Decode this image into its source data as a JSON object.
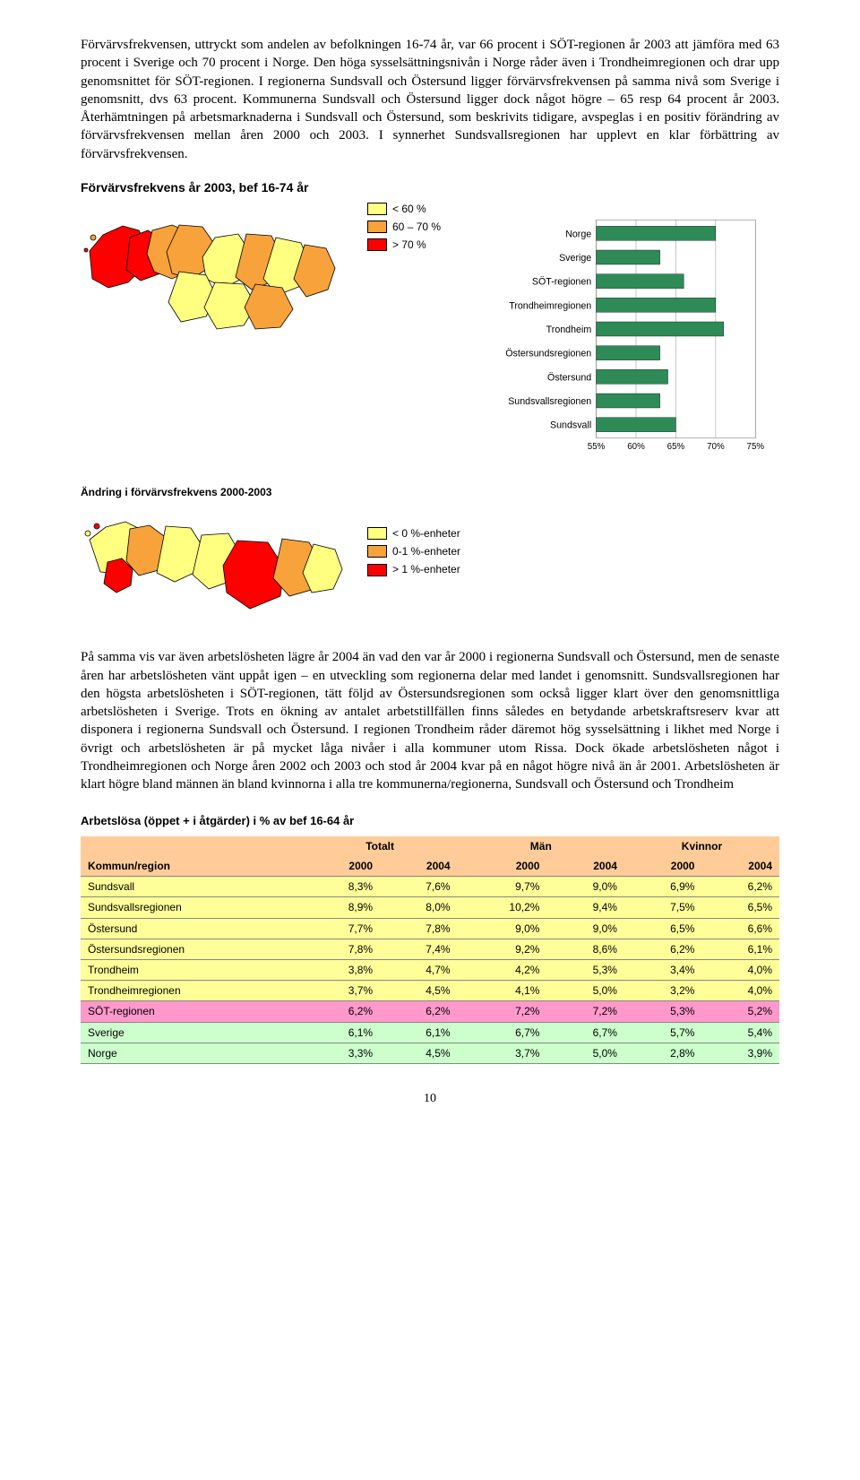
{
  "paragraphs": {
    "p1": "Förvärvsfrekvensen, uttryckt som andelen av befolkningen 16-74 år, var 66 procent i SÖT-regionen år 2003 att jämföra med 63 procent i Sverige och 70 procent i Norge. Den höga sysselsättningsnivån i Norge råder även i Trondheimregionen och drar upp genomsnittet för SÖT-regionen. I regionerna Sundsvall och Östersund ligger förvärvsfrekvensen på samma nivå som Sverige i genomsnitt, dvs 63 procent. Kommunerna Sundsvall och Östersund ligger dock något högre – 65 resp 64 procent år 2003. Återhämtningen på arbetsmarknaderna i Sundsvall och Östersund, som beskrivits tidigare, avspeglas i en positiv förändring av förvärvsfrekvensen mellan åren 2000 och 2003. I synnerhet Sundsvallsregionen har upplevt en klar förbättring av förvärvsfrekvensen.",
    "p2": "På samma vis var även arbetslösheten lägre år 2004 än vad den var år 2000 i regionerna Sundsvall och Östersund, men de senaste åren har arbetslösheten vänt uppåt igen – en utveckling som regionerna delar med landet i genomsnitt. Sundsvallsregionen har den högsta arbetslösheten i SÖT-regionen, tätt följd av Östersundsregionen som också ligger klart över den genomsnittliga arbetslösheten i Sverige. Trots en ökning av antalet arbetstillfällen finns således en betydande arbetskraftsreserv kvar att disponera i regionerna Sundsvall och Östersund. I regionen Trondheim råder däremot hög sysselsättning i likhet med Norge i övrigt och arbetslösheten är på mycket låga nivåer i alla kommuner utom Rissa. Dock ökade arbetslösheten något i Trondheimregionen och Norge åren 2002 och 2003 och stod år 2004 kvar på en något högre nivå än år 2001. Arbetslösheten är klart högre bland männen än bland kvinnorna i alla tre kommunerna/regionerna, Sundsvall och Östersund och Trondheim"
  },
  "chart": {
    "title": "Förvärvsfrekvens år 2003, bef 16-74 år",
    "legend1": [
      {
        "label": "< 60 %",
        "color": "#ffff80"
      },
      {
        "label": "60 – 70 %",
        "color": "#f7a23b"
      },
      {
        "label": "> 70 %",
        "color": "#ff0000"
      }
    ],
    "map1_colors": {
      "bg": "#ffffff",
      "border": "#000000"
    },
    "hbar": {
      "xlim": [
        55,
        75
      ],
      "xticks": [
        55,
        60,
        65,
        70,
        75
      ],
      "bar_color": "#2e8b57",
      "grid_color": "#808080",
      "items": [
        {
          "label": "Norge",
          "value": 70
        },
        {
          "label": "Sverige",
          "value": 63
        },
        {
          "label": "SÖT-regionen",
          "value": 66
        },
        {
          "label": "Trondheimregionen",
          "value": 70
        },
        {
          "label": "Trondheim",
          "value": 71
        },
        {
          "label": "Östersundsregionen",
          "value": 63
        },
        {
          "label": "Östersund",
          "value": 64
        },
        {
          "label": "Sundsvallsregionen",
          "value": 63
        },
        {
          "label": "Sundsvall",
          "value": 65
        }
      ]
    },
    "change_title": "Ändring i förvärvsfrekvens 2000-2003",
    "legend2": [
      {
        "label": "< 0 %-enheter",
        "color": "#ffff80"
      },
      {
        "label": "0-1 %-enheter",
        "color": "#f7a23b"
      },
      {
        "label": "> 1 %-enheter",
        "color": "#ff0000"
      }
    ]
  },
  "table": {
    "title": "Arbetslösa (öppet + i åtgärder) i % av bef 16-64 år",
    "group_headers": [
      "Totalt",
      "Män",
      "Kvinnor"
    ],
    "sub_headers_label": "Kommun/region",
    "sub_headers": [
      "2000",
      "2004",
      "2000",
      "2004",
      "2000",
      "2004"
    ],
    "rows": [
      {
        "label": "Sundsvall",
        "vals": [
          "8,3%",
          "7,6%",
          "9,7%",
          "9,0%",
          "6,9%",
          "6,2%"
        ],
        "bg": "#ffff99"
      },
      {
        "label": "Sundsvallsregionen",
        "vals": [
          "8,9%",
          "8,0%",
          "10,2%",
          "9,4%",
          "7,5%",
          "6,5%"
        ],
        "bg": "#ffff99"
      },
      {
        "label": "Östersund",
        "vals": [
          "7,7%",
          "7,8%",
          "9,0%",
          "9,0%",
          "6,5%",
          "6,6%"
        ],
        "bg": "#ffff99"
      },
      {
        "label": "Östersundsregionen",
        "vals": [
          "7,8%",
          "7,4%",
          "9,2%",
          "8,6%",
          "6,2%",
          "6,1%"
        ],
        "bg": "#ffff99"
      },
      {
        "label": "Trondheim",
        "vals": [
          "3,8%",
          "4,7%",
          "4,2%",
          "5,3%",
          "3,4%",
          "4,0%"
        ],
        "bg": "#ffff99"
      },
      {
        "label": "Trondheimregionen",
        "vals": [
          "3,7%",
          "4,5%",
          "4,1%",
          "5,0%",
          "3,2%",
          "4,0%"
        ],
        "bg": "#ffff99"
      },
      {
        "label": "SÖT-regionen",
        "vals": [
          "6,2%",
          "6,2%",
          "7,2%",
          "7,2%",
          "5,3%",
          "5,2%"
        ],
        "bg": "#ff99cc"
      },
      {
        "label": "Sverige",
        "vals": [
          "6,1%",
          "6,1%",
          "6,7%",
          "6,7%",
          "5,7%",
          "5,4%"
        ],
        "bg": "#ccffcc"
      },
      {
        "label": "Norge",
        "vals": [
          "3,3%",
          "4,5%",
          "3,7%",
          "5,0%",
          "2,8%",
          "3,9%"
        ],
        "bg": "#ccffcc"
      }
    ],
    "header_bg": "#ffcc99"
  },
  "page_number": "10"
}
